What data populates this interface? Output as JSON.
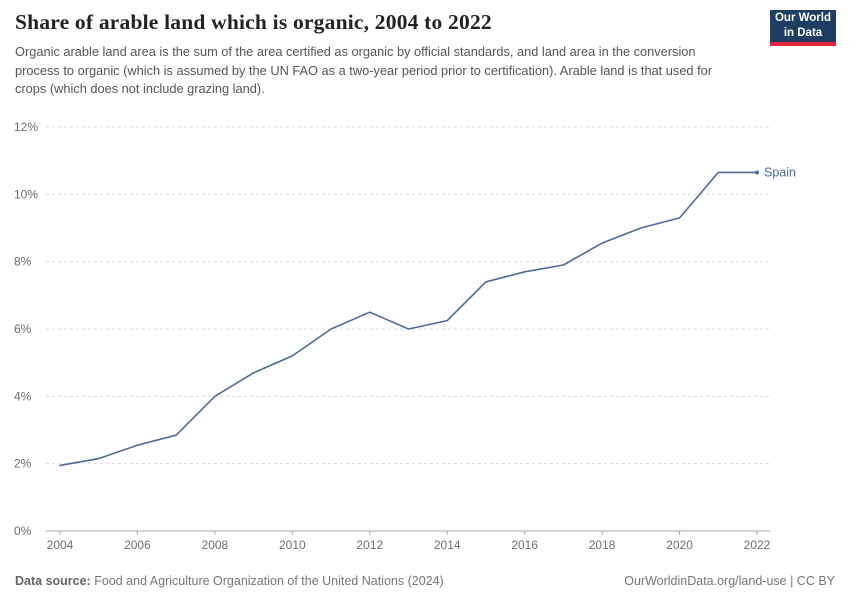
{
  "header": {
    "title": "Share of arable land which is organic, 2004 to 2022",
    "subtitle": "Organic arable land area is the sum of the area certified as organic by official standards, and land area in the conversion process to organic (which is assumed by the UN FAO as a two-year period prior to certification). Arable land is that used for crops (which does not include grazing land).",
    "logo": {
      "line1": "Our World",
      "line2": "in Data",
      "bg_color": "#1d3d63",
      "accent_color": "#e0263c"
    }
  },
  "chart_data": {
    "type": "line",
    "title": "Share of arable land which is organic, 2004 to 2022",
    "x": [
      2004,
      2005,
      2006,
      2007,
      2008,
      2009,
      2010,
      2011,
      2012,
      2013,
      2014,
      2015,
      2016,
      2017,
      2018,
      2019,
      2020,
      2021,
      2022
    ],
    "series": [
      {
        "name": "Spain",
        "color": "#4c6a9c",
        "values": [
          1.95,
          2.15,
          2.55,
          2.85,
          4.0,
          4.7,
          5.2,
          6.0,
          6.5,
          6.0,
          6.25,
          7.4,
          7.7,
          7.9,
          8.55,
          9.0,
          9.3,
          10.65,
          10.65
        ]
      }
    ],
    "ylim": [
      0,
      12
    ],
    "yticks": [
      {
        "value": 0,
        "label": "0%"
      },
      {
        "value": 2,
        "label": "2%"
      },
      {
        "value": 4,
        "label": "4%"
      },
      {
        "value": 6,
        "label": "6%"
      },
      {
        "value": 8,
        "label": "8%"
      },
      {
        "value": 10,
        "label": "10%"
      },
      {
        "value": 12,
        "label": "12%"
      }
    ],
    "xticks": [
      2004,
      2006,
      2008,
      2010,
      2012,
      2014,
      2016,
      2018,
      2020,
      2022
    ],
    "grid": true,
    "legend_position": "end-of-line",
    "axis_color": "#a9a9a9",
    "grid_color": "#dcdcdc",
    "tick_label_color": "#6e6e6e"
  },
  "footer": {
    "source_label": "Data source:",
    "source_text": " Food and Agriculture Organization of the United Nations (2024)",
    "right_text": "OurWorldinData.org/land-use | CC BY"
  }
}
